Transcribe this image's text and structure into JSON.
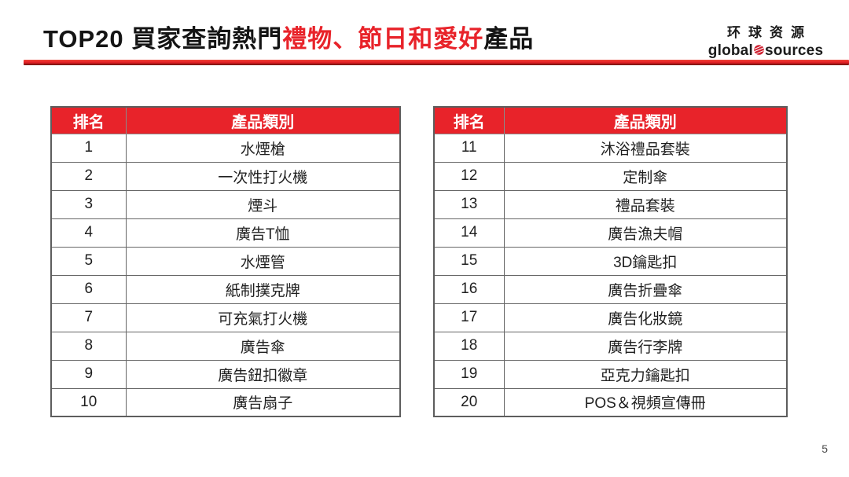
{
  "title": {
    "prefix": "TOP20 買家查詢熱門",
    "highlight": "禮物、節日和愛好",
    "suffix": "產品"
  },
  "logo": {
    "chinese": "环球资源",
    "english_left": "global",
    "english_right": "sources",
    "dot_icon": "globe-dot"
  },
  "page_number": "5",
  "colors": {
    "accent_red": "#E8232A",
    "table_border": "#666666",
    "header_text": "#FFFFFF",
    "body_text": "#1F1F1F"
  },
  "tables": [
    {
      "headers": [
        "排名",
        "產品類別"
      ],
      "rows": [
        [
          "1",
          "水煙槍"
        ],
        [
          "2",
          "一次性打火機"
        ],
        [
          "3",
          "煙斗"
        ],
        [
          "4",
          "廣告T恤"
        ],
        [
          "5",
          "水煙管"
        ],
        [
          "6",
          "紙制撲克牌"
        ],
        [
          "7",
          "可充氣打火機"
        ],
        [
          "8",
          "廣告傘"
        ],
        [
          "9",
          "廣告鈕扣徽章"
        ],
        [
          "10",
          "廣告扇子"
        ]
      ]
    },
    {
      "headers": [
        "排名",
        "產品類別"
      ],
      "rows": [
        [
          "11",
          "沐浴禮品套裝"
        ],
        [
          "12",
          "定制傘"
        ],
        [
          "13",
          "禮品套裝"
        ],
        [
          "14",
          "廣告漁夫帽"
        ],
        [
          "15",
          "3D鑰匙扣"
        ],
        [
          "16",
          "廣告折疊傘"
        ],
        [
          "17",
          "廣告化妝鏡"
        ],
        [
          "18",
          "廣告行李牌"
        ],
        [
          "19",
          "亞克力鑰匙扣"
        ],
        [
          "20",
          "POS＆視頻宣傳冊"
        ]
      ]
    }
  ]
}
